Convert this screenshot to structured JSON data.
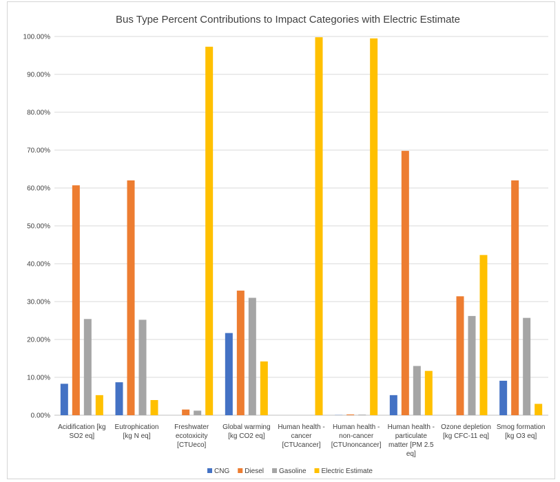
{
  "chart_data": {
    "type": "bar",
    "title": "Bus Type Percent Contributions to Impact Categories with Electric Estimate",
    "xlabel": "",
    "ylabel": "",
    "ylim": [
      0,
      100
    ],
    "yticks": [
      "0.00%",
      "10.00%",
      "20.00%",
      "30.00%",
      "40.00%",
      "50.00%",
      "60.00%",
      "70.00%",
      "80.00%",
      "90.00%",
      "100.00%"
    ],
    "grid": true,
    "legend_position": "bottom",
    "categories": [
      "Acidification [kg SO2 eq]",
      "Eutrophication [kg N eq]",
      "Freshwater ecotoxicity [CTUeco]",
      "Global warming [kg CO2 eq]",
      "Human health - cancer [CTUcancer]",
      "Human health - non-cancer [CTUnoncancer]",
      "Human health - particulate matter [PM 2.5 eq]",
      "Ozone depletion [kg CFC-11 eq]",
      "Smog formation [kg O3 eq]"
    ],
    "category_lines": [
      [
        "Acidification [kg",
        "SO2 eq]"
      ],
      [
        "Eutrophication",
        "[kg N eq]"
      ],
      [
        "Freshwater",
        "ecotoxicity",
        "[CTUeco]"
      ],
      [
        "Global warming",
        "[kg CO2 eq]"
      ],
      [
        "Human health -",
        "cancer",
        "[CTUcancer]"
      ],
      [
        "Human health -",
        "non-cancer",
        "[CTUnoncancer]"
      ],
      [
        "Human health -",
        "particulate",
        "matter [PM 2.5",
        "eq]"
      ],
      [
        "Ozone depletion",
        "[kg CFC-11 eq]"
      ],
      [
        "Smog formation",
        "[kg O3 eq]"
      ]
    ],
    "series": [
      {
        "name": "CNG",
        "color": "#4472c4",
        "values": [
          8.3,
          8.7,
          0.0,
          21.7,
          0.0,
          0.05,
          5.3,
          0.0,
          9.1
        ]
      },
      {
        "name": "Diesel",
        "color": "#ed7d31",
        "values": [
          60.7,
          62.0,
          1.5,
          32.9,
          0.0,
          0.2,
          69.8,
          31.4,
          62.0
        ]
      },
      {
        "name": "Gasoline",
        "color": "#a5a5a5",
        "values": [
          25.4,
          25.2,
          1.2,
          31.0,
          0.0,
          0.15,
          13.0,
          26.2,
          25.7
        ]
      },
      {
        "name": "Electric Estimate",
        "color": "#ffc000",
        "values": [
          5.3,
          4.0,
          97.3,
          14.2,
          99.8,
          99.5,
          11.7,
          42.3,
          3.0
        ]
      }
    ]
  }
}
